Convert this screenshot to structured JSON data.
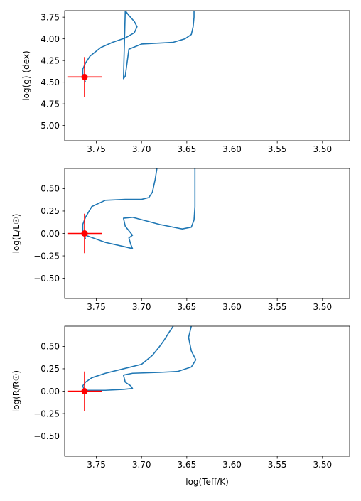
{
  "chart_data": [
    {
      "type": "line",
      "ylabel": "log(g) (dex)",
      "xlabel": "",
      "x_inverted": true,
      "xlim": [
        3.785,
        3.47
      ],
      "ylim": [
        5.175,
        3.675
      ],
      "x_ticks": [
        3.75,
        3.7,
        3.65,
        3.6,
        3.55,
        3.5
      ],
      "x_tick_labels": [
        "3.75",
        "3.70",
        "3.65",
        "3.60",
        "3.55",
        "3.50"
      ],
      "y_ticks": [
        3.75,
        4.0,
        4.25,
        4.5,
        4.75,
        5.0
      ],
      "y_tick_labels": [
        "3.75",
        "4.00",
        "4.25",
        "4.50",
        "4.75",
        "5.00"
      ],
      "series": [
        {
          "color": "#1f77b4",
          "x": [
            3.762,
            3.763,
            3.765,
            3.765,
            3.762,
            3.757,
            3.745,
            3.732,
            3.718,
            3.708,
            3.705,
            3.708,
            3.714,
            3.718,
            3.72,
            3.718,
            3.714,
            3.7,
            3.665,
            3.652,
            3.645,
            3.643,
            3.642,
            3.642
          ],
          "y": [
            4.5,
            4.47,
            4.42,
            4.35,
            4.28,
            4.2,
            4.1,
            4.04,
            3.99,
            3.93,
            3.86,
            3.8,
            3.73,
            3.675,
            4.46,
            4.43,
            4.12,
            4.06,
            4.04,
            4.0,
            3.95,
            3.86,
            3.75,
            3.675
          ]
        }
      ],
      "points": [
        {
          "x": 3.763,
          "y": 4.44,
          "xerr": 0.019,
          "yerr": 0.23,
          "color": "#ff0000"
        }
      ]
    },
    {
      "type": "line",
      "ylabel": "log(L/L☉)",
      "xlabel": "",
      "x_inverted": true,
      "xlim": [
        3.785,
        3.47
      ],
      "ylim": [
        -0.725,
        0.725
      ],
      "x_ticks": [
        3.75,
        3.7,
        3.65,
        3.6,
        3.55,
        3.5
      ],
      "x_tick_labels": [
        "3.75",
        "3.70",
        "3.65",
        "3.60",
        "3.55",
        "3.50"
      ],
      "y_ticks": [
        0.5,
        0.25,
        0.0,
        -0.25,
        -0.5
      ],
      "y_tick_labels": [
        "0.50",
        "0.25",
        "0.00",
        "−0.25",
        "−0.50"
      ],
      "series": [
        {
          "color": "#1f77b4",
          "x": [
            3.762,
            3.763,
            3.765,
            3.765,
            3.762,
            3.755,
            3.74,
            3.718,
            3.7,
            3.692,
            3.688,
            3.685,
            3.683
          ],
          "y": [
            -0.06,
            -0.03,
            0.02,
            0.1,
            0.18,
            0.3,
            0.37,
            0.38,
            0.38,
            0.4,
            0.46,
            0.6,
            0.725
          ]
        },
        {
          "color": "#1f77b4",
          "x": [
            3.762,
            3.74,
            3.718,
            3.71,
            3.712,
            3.714,
            3.71,
            3.718,
            3.72,
            3.71,
            3.68,
            3.655,
            3.645,
            3.642,
            3.641,
            3.641
          ],
          "y": [
            -0.02,
            -0.1,
            -0.15,
            -0.17,
            -0.12,
            -0.05,
            -0.02,
            0.08,
            0.17,
            0.18,
            0.1,
            0.05,
            0.07,
            0.15,
            0.3,
            0.725
          ]
        }
      ],
      "points": [
        {
          "x": 3.763,
          "y": 0.0,
          "xerr": 0.019,
          "yerr": 0.22,
          "color": "#ff0000"
        }
      ]
    },
    {
      "type": "line",
      "ylabel": "log(R/R☉)",
      "xlabel": "log(Teff/K)",
      "x_inverted": true,
      "xlim": [
        3.785,
        3.47
      ],
      "ylim": [
        -0.725,
        0.725
      ],
      "x_ticks": [
        3.75,
        3.7,
        3.65,
        3.6,
        3.55,
        3.5
      ],
      "x_tick_labels": [
        "3.75",
        "3.70",
        "3.65",
        "3.60",
        "3.55",
        "3.50"
      ],
      "y_ticks": [
        0.5,
        0.25,
        0.0,
        -0.25,
        -0.5
      ],
      "y_tick_labels": [
        "0.50",
        "0.25",
        "0.00",
        "−0.25",
        "−0.50"
      ],
      "series": [
        {
          "color": "#1f77b4",
          "x": [
            3.762,
            3.764,
            3.765,
            3.762,
            3.755,
            3.74,
            3.72,
            3.7,
            3.688,
            3.68,
            3.675,
            3.67,
            3.665
          ],
          "y": [
            0.0,
            0.03,
            0.06,
            0.1,
            0.15,
            0.2,
            0.25,
            0.3,
            0.4,
            0.5,
            0.57,
            0.65,
            0.725
          ]
        },
        {
          "color": "#1f77b4",
          "x": [
            3.762,
            3.74,
            3.72,
            3.71,
            3.712,
            3.718,
            3.72,
            3.71,
            3.68,
            3.66,
            3.645,
            3.64,
            3.645,
            3.648,
            3.645
          ],
          "y": [
            0.01,
            0.01,
            0.02,
            0.03,
            0.06,
            0.1,
            0.18,
            0.2,
            0.21,
            0.22,
            0.27,
            0.35,
            0.45,
            0.6,
            0.725
          ]
        }
      ],
      "points": [
        {
          "x": 3.763,
          "y": 0.0,
          "xerr": 0.019,
          "yerr": 0.22,
          "color": "#ff0000"
        }
      ]
    }
  ]
}
